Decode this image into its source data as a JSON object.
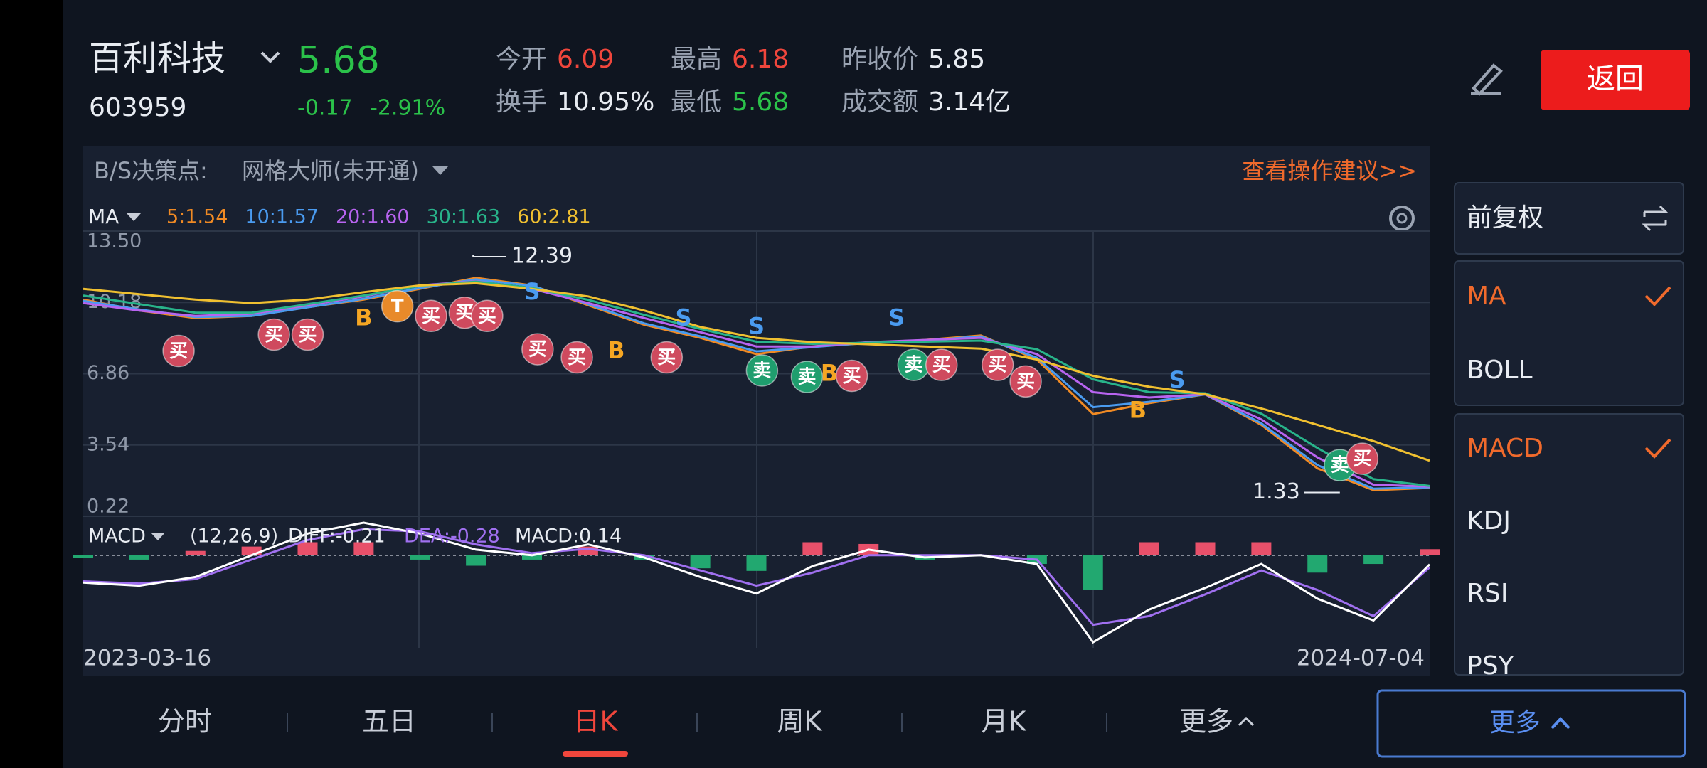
{
  "header": {
    "name": "百利科技",
    "price": 5.68,
    "code": "603959",
    "change": -0.17,
    "change_pct": "-2.91%"
  },
  "stats": [
    {
      "label": "今开",
      "value": 6.09,
      "color": "#f0463c"
    },
    {
      "label": "换手",
      "value": "10.95%",
      "color": "#e8ecf2"
    },
    {
      "label": "最高",
      "value": 6.18,
      "color": "#f0463c"
    },
    {
      "label": "最低",
      "value": 5.68,
      "color": "#2bc24a"
    },
    {
      "label": "昨收价",
      "value": 5.85,
      "color": "#e8ecf2"
    },
    {
      "label": "成交额",
      "value": "3.14亿",
      "color": "#e8ecf2"
    }
  ],
  "back_button": "返回",
  "toolbar": {
    "label": "B/S决策点:",
    "tool": "网格大师(未开通)",
    "link": "查看操作建议>>"
  },
  "chart_data": {
    "type": "line",
    "indicator": "MA",
    "series": [
      {
        "name": "5:1.54",
        "color": "#f08a24",
        "values": [
          10.31,
          9.8,
          9.45,
          9.55,
          9.96,
          10.31,
          10.81,
          11.32,
          10.97,
          10.05,
          9.14,
          8.53,
          7.77,
          8.13,
          8.28,
          8.43,
          8.64,
          7.52,
          4.98,
          5.49,
          5.9,
          4.48,
          2.45,
          1.44,
          1.54
        ]
      },
      {
        "name": "10:1.57",
        "color": "#4a9bf0",
        "values": [
          10.25,
          9.85,
          9.5,
          9.55,
          9.95,
          10.35,
          10.85,
          11.25,
          10.95,
          10.1,
          9.2,
          8.6,
          7.9,
          8.1,
          8.3,
          8.4,
          8.6,
          7.6,
          5.3,
          5.55,
          5.9,
          4.55,
          2.6,
          1.5,
          1.57
        ]
      },
      {
        "name": "20:1.60",
        "color": "#b864f0",
        "values": [
          10.15,
          9.8,
          9.55,
          9.65,
          10.05,
          10.46,
          10.97,
          11.17,
          10.81,
          10.15,
          9.45,
          8.79,
          8.13,
          8.13,
          8.33,
          8.43,
          8.53,
          7.77,
          6.0,
          5.75,
          5.9,
          4.73,
          2.96,
          1.69,
          1.6
        ]
      },
      {
        "name": "30:1.63",
        "color": "#28b48a",
        "values": [
          10.5,
          10.1,
          9.7,
          9.7,
          10.1,
          10.5,
          10.95,
          11.15,
          10.85,
          10.3,
          9.6,
          8.95,
          8.35,
          8.25,
          8.3,
          8.35,
          8.4,
          8.0,
          6.6,
          6.0,
          5.95,
          5.0,
          3.4,
          1.95,
          1.63
        ]
      },
      {
        "name": "60:2.81",
        "color": "#f0c030",
        "values": [
          10.81,
          10.56,
          10.31,
          10.15,
          10.31,
          10.66,
          10.97,
          11.07,
          10.81,
          10.46,
          9.8,
          9.04,
          8.53,
          8.33,
          8.23,
          8.13,
          8.03,
          7.52,
          6.76,
          6.25,
          5.9,
          5.24,
          4.48,
          3.72,
          2.81
        ]
      }
    ],
    "ylim": [
      0.22,
      13.5
    ],
    "yticks": [
      {
        "value": 13.5,
        "label": "13.50"
      },
      10.18,
      6.86,
      3.54,
      0.22
    ],
    "grid": true,
    "high": {
      "value": 12.39,
      "x": 6.95
    },
    "low": {
      "value": 1.33,
      "x": 22.4
    },
    "signals": [
      {
        "label": "买",
        "x": 1.7,
        "y": 7.92,
        "color": "#cf4a5e",
        "badge": true
      },
      {
        "label": "买",
        "x": 3.4,
        "y": 8.68,
        "color": "#cf4a5e",
        "badge": true
      },
      {
        "label": "买",
        "x": 4.0,
        "y": 8.68,
        "color": "#cf4a5e",
        "badge": true
      },
      {
        "label": "B",
        "x": 5.0,
        "y": 9.44,
        "color": "#f5a623",
        "badge": false
      },
      {
        "label": "T",
        "x": 5.6,
        "y": 10.0,
        "color": "#e88a2a",
        "badge": true
      },
      {
        "label": "买",
        "x": 6.2,
        "y": 9.55,
        "color": "#cf4a5e",
        "badge": true
      },
      {
        "label": "买",
        "x": 6.8,
        "y": 9.7,
        "color": "#cf4a5e",
        "badge": true
      },
      {
        "label": "买",
        "x": 7.2,
        "y": 9.55,
        "color": "#cf4a5e",
        "badge": true
      },
      {
        "label": "S",
        "x": 8.0,
        "y": 10.66,
        "color": "#4a9bf0",
        "badge": false
      },
      {
        "label": "买",
        "x": 8.1,
        "y": 8.0,
        "color": "#cf4a5e",
        "badge": true
      },
      {
        "label": "买",
        "x": 8.8,
        "y": 7.62,
        "color": "#cf4a5e",
        "badge": true
      },
      {
        "label": "B",
        "x": 9.5,
        "y": 7.92,
        "color": "#f5a623",
        "badge": false
      },
      {
        "label": "买",
        "x": 10.4,
        "y": 7.62,
        "color": "#cf4a5e",
        "badge": true
      },
      {
        "label": "S",
        "x": 10.7,
        "y": 9.44,
        "color": "#4a9bf0",
        "badge": false
      },
      {
        "label": "S",
        "x": 12.0,
        "y": 9.04,
        "color": "#4a9bf0",
        "badge": false
      },
      {
        "label": "卖",
        "x": 12.1,
        "y": 7.01,
        "color": "#1f9e6e",
        "badge": true
      },
      {
        "label": "卖",
        "x": 12.9,
        "y": 6.71,
        "color": "#1f9e6e",
        "badge": true
      },
      {
        "label": "B",
        "x": 13.3,
        "y": 6.86,
        "color": "#f5a623",
        "badge": false
      },
      {
        "label": "买",
        "x": 13.7,
        "y": 6.76,
        "color": "#cf4a5e",
        "badge": true
      },
      {
        "label": "S",
        "x": 14.5,
        "y": 9.44,
        "color": "#4a9bf0",
        "badge": false
      },
      {
        "label": "卖",
        "x": 14.8,
        "y": 7.27,
        "color": "#1f9e6e",
        "badge": true
      },
      {
        "label": "买",
        "x": 15.3,
        "y": 7.27,
        "color": "#cf4a5e",
        "badge": true
      },
      {
        "label": "买",
        "x": 16.3,
        "y": 7.27,
        "color": "#cf4a5e",
        "badge": true
      },
      {
        "label": "买",
        "x": 16.8,
        "y": 6.5,
        "color": "#cf4a5e",
        "badge": true
      },
      {
        "label": "B",
        "x": 18.8,
        "y": 5.14,
        "color": "#f5a623",
        "badge": false
      },
      {
        "label": "S",
        "x": 19.5,
        "y": 6.55,
        "color": "#4a9bf0",
        "badge": false
      },
      {
        "label": "卖",
        "x": 22.4,
        "y": 2.6,
        "color": "#1f9e6e",
        "badge": true
      },
      {
        "label": "买",
        "x": 22.8,
        "y": 2.9,
        "color": "#cf4a5e",
        "badge": true
      }
    ],
    "macd": {
      "name": "MACD",
      "params": "(12,26,9)",
      "diff_label": "DIFF:-0.21",
      "dea_label": "DEA:-0.28",
      "macd_label": "MACD:0.14",
      "ylim": [
        -2.13,
        0.75
      ],
      "diff": {
        "color": "#ffffff",
        "values": [
          -0.63,
          -0.7,
          -0.5,
          0,
          0.5,
          0.75,
          0.5,
          0.13,
          0,
          0.25,
          -0.05,
          -0.5,
          -0.88,
          -0.25,
          0.13,
          -0.05,
          0,
          -0.2,
          -2.0,
          -1.25,
          -0.75,
          -0.2,
          -1.0,
          -1.5,
          -0.21
        ]
      },
      "dea": {
        "color": "#a070f0",
        "values": [
          -0.6,
          -0.65,
          -0.55,
          -0.1,
          0.35,
          0.6,
          0.55,
          0.25,
          0.05,
          0.15,
          0,
          -0.35,
          -0.7,
          -0.4,
          0,
          0,
          0,
          -0.1,
          -1.6,
          -1.4,
          -0.9,
          -0.35,
          -0.8,
          -1.4,
          -0.28
        ]
      },
      "hist": {
        "up_color": "#e8506a",
        "down_color": "#22a870",
        "values": [
          -0.06,
          -0.1,
          0.1,
          0.2,
          0.3,
          0.3,
          -0.1,
          -0.24,
          -0.1,
          0.2,
          -0.1,
          -0.3,
          -0.36,
          0.3,
          0.26,
          -0.1,
          0,
          -0.2,
          -0.8,
          0.3,
          0.3,
          0.3,
          -0.4,
          -0.2,
          0.14
        ]
      }
    },
    "start_date": "2023-03-16",
    "end_date": "2024-07-04"
  },
  "tabs": [
    {
      "label": "分时",
      "active": false
    },
    {
      "label": "五日",
      "active": false
    },
    {
      "label": "日K",
      "active": true
    },
    {
      "label": "周K",
      "active": false
    },
    {
      "label": "月K",
      "active": false
    },
    {
      "label": "更多",
      "active": false
    }
  ],
  "side_panel": {
    "adjust": "前复权",
    "main": [
      {
        "label": "MA",
        "checked": true
      },
      {
        "label": "BOLL",
        "checked": false
      }
    ],
    "sub": [
      {
        "label": "MACD",
        "checked": true
      },
      {
        "label": "KDJ",
        "checked": false
      },
      {
        "label": "RSI",
        "checked": false
      },
      {
        "label": "PSY",
        "checked": false
      }
    ],
    "more": "更多"
  }
}
